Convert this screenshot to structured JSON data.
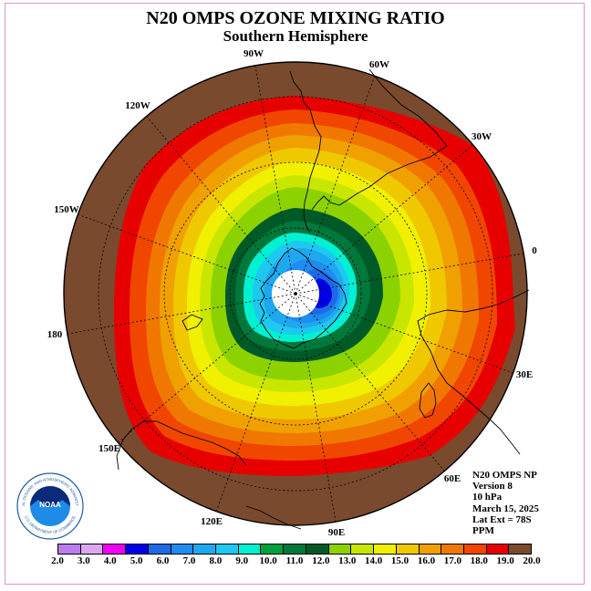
{
  "title": "N20 OMPS OZONE MIXING RATIO",
  "subtitle": "Southern Hemisphere",
  "longitude_labels": [
    "90W",
    "60W",
    "30W",
    "0",
    "30E",
    "60E",
    "90E",
    "120E",
    "150E",
    "180",
    "150W",
    "120W"
  ],
  "info": {
    "product": "N20 OMPS NP",
    "version": "Version 8",
    "level": "10 hPa",
    "date": "March 15, 2025",
    "lat_ext": "Lat Ext = 78S",
    "units": "PPM"
  },
  "colorbar": {
    "labels": [
      "2.0",
      "3.0",
      "4.0",
      "5.0",
      "6.0",
      "7.0",
      "8.0",
      "9.0",
      "10.0",
      "11.0",
      "12.0",
      "13.0",
      "14.0",
      "15.0",
      "16.0",
      "17.0",
      "18.0",
      "19.0",
      "20.0"
    ],
    "colors": [
      "#b87ef0",
      "#dba8f0",
      "#f000f0",
      "#0000e6",
      "#1e6ae6",
      "#1e8cf0",
      "#1ea8f0",
      "#1ec8f0",
      "#00f0d2",
      "#00a03c",
      "#00783c",
      "#005a28",
      "#8cd200",
      "#c8e600",
      "#f0f000",
      "#f0c800",
      "#f0a000",
      "#f07800",
      "#f04600",
      "#e60000",
      "#7a4a2e"
    ]
  },
  "logo": {
    "text": "NOAA",
    "ring_text": "NATIONAL OCEANIC AND ATMOSPHERIC ADMINISTRATION",
    "ring_text_bottom": "U.S. DEPARTMENT OF COMMERCE"
  }
}
